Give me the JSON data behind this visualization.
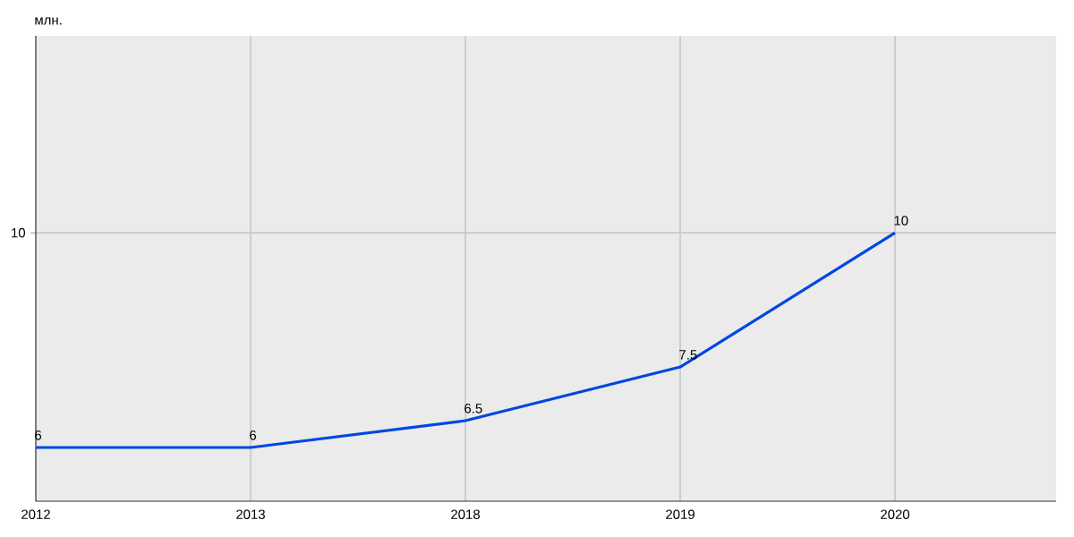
{
  "chart_data": {
    "type": "line",
    "ylabel": "млн.",
    "categories": [
      "2012",
      "2013",
      "2018",
      "2019",
      "2020"
    ],
    "series": [
      {
        "color": "#0047e0",
        "values": [
          6,
          6,
          6.5,
          7.5,
          10
        ]
      }
    ],
    "ylim": [
      5,
      13.67
    ],
    "ref_lines": [
      {
        "axis": "y",
        "value": 10,
        "label": "10"
      }
    ],
    "grid": true,
    "data_labels": true,
    "marker": "none",
    "line_style": "solid"
  }
}
